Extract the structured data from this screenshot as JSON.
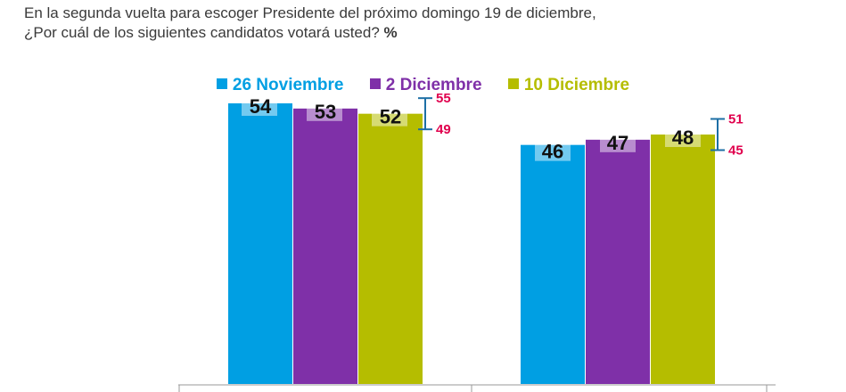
{
  "question": {
    "line1": "En la segunda vuelta para escoger Presidente del próximo domingo 19 de diciembre,",
    "line2": "¿Por cuál de los siguientes candidatos votará usted?",
    "unit": "%"
  },
  "colors": {
    "nov26": "#009fe3",
    "dic2": "#7f30a8",
    "dic10": "#b5bd00",
    "error": "#e0004d",
    "errorLine": "#1d6fa5",
    "axis": "#999999"
  },
  "chart_data": {
    "type": "bar",
    "title": "",
    "xlabel": "",
    "ylabel": "",
    "categories": [
      "",
      ""
    ],
    "series": [
      {
        "name": "26 Noviembre",
        "values": [
          54,
          46
        ]
      },
      {
        "name": "2 Diciembre",
        "values": [
          53,
          47
        ]
      },
      {
        "name": "10 Diciembre",
        "values": [
          52,
          48
        ]
      }
    ],
    "error_range": [
      {
        "series": "10 Diciembre",
        "high": 55,
        "low": 49
      },
      {
        "series": "10 Diciembre",
        "high": 51,
        "low": 45
      }
    ],
    "ylim": [
      0,
      60
    ],
    "legend": "top-center",
    "grid": false
  }
}
